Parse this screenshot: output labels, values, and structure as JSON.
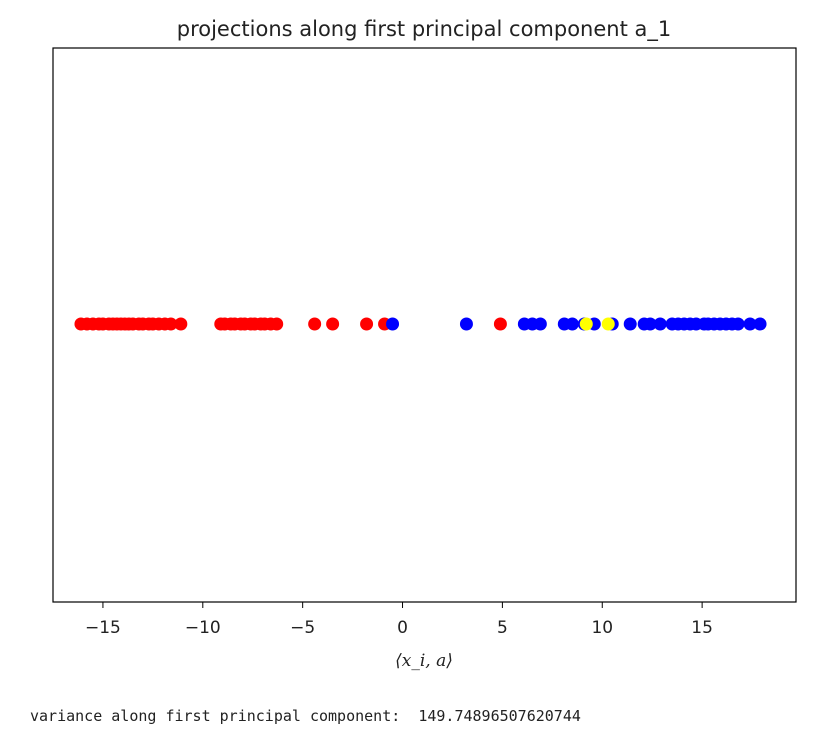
{
  "chart_data": {
    "type": "scatter",
    "title": "projections along first principal component a_1",
    "xlabel": "⟨x_i, a⟩",
    "ylabel": "",
    "xlim": [
      -17.5,
      19.7
    ],
    "xticks": [
      -15,
      -10,
      -5,
      0,
      5,
      10,
      15
    ],
    "xtick_labels": [
      "−15",
      "−10",
      "−5",
      "0",
      "5",
      "10",
      "15"
    ],
    "y_ticks_shown": false,
    "grid": false,
    "legend": "none",
    "series": [
      {
        "color": "#ff0000",
        "x": [
          -16.1,
          -15.8,
          -15.5,
          -15.2,
          -15.0,
          -14.7,
          -14.5,
          -14.3,
          -14.1,
          -13.9,
          -13.7,
          -13.5,
          -13.2,
          -13.0,
          -12.7,
          -12.5,
          -12.2,
          -11.9,
          -11.6,
          -11.1,
          -9.1,
          -8.9,
          -8.6,
          -8.4,
          -8.1,
          -7.9,
          -7.6,
          -7.4,
          -7.1,
          -6.9,
          -6.6,
          -6.3,
          -4.4,
          -3.5,
          -1.8,
          -0.9,
          4.9
        ],
        "y": [
          0,
          0,
          0,
          0,
          0,
          0,
          0,
          0,
          0,
          0,
          0,
          0,
          0,
          0,
          0,
          0,
          0,
          0,
          0,
          0,
          0,
          0,
          0,
          0,
          0,
          0,
          0,
          0,
          0,
          0,
          0,
          0,
          0,
          0,
          0,
          0,
          0
        ]
      },
      {
        "color": "#0000ff",
        "x": [
          -0.5,
          3.2,
          6.1,
          6.5,
          6.9,
          8.1,
          8.5,
          9.1,
          9.6,
          10.5,
          11.4,
          12.1,
          12.4,
          12.9,
          13.5,
          13.8,
          14.1,
          14.4,
          14.7,
          15.1,
          15.3,
          15.6,
          15.9,
          16.2,
          16.5,
          16.8,
          17.4,
          17.9
        ],
        "y": [
          0,
          0,
          0,
          0,
          0,
          0,
          0,
          0,
          0,
          0,
          0,
          0,
          0,
          0,
          0,
          0,
          0,
          0,
          0,
          0,
          0,
          0,
          0,
          0,
          0,
          0,
          0,
          0
        ]
      },
      {
        "color": "#ffff00",
        "x": [
          9.2,
          10.3
        ],
        "y": [
          0,
          0
        ]
      }
    ]
  },
  "output": {
    "variance_label": "variance along first principal component:",
    "variance_value": "149.74896507620744"
  }
}
